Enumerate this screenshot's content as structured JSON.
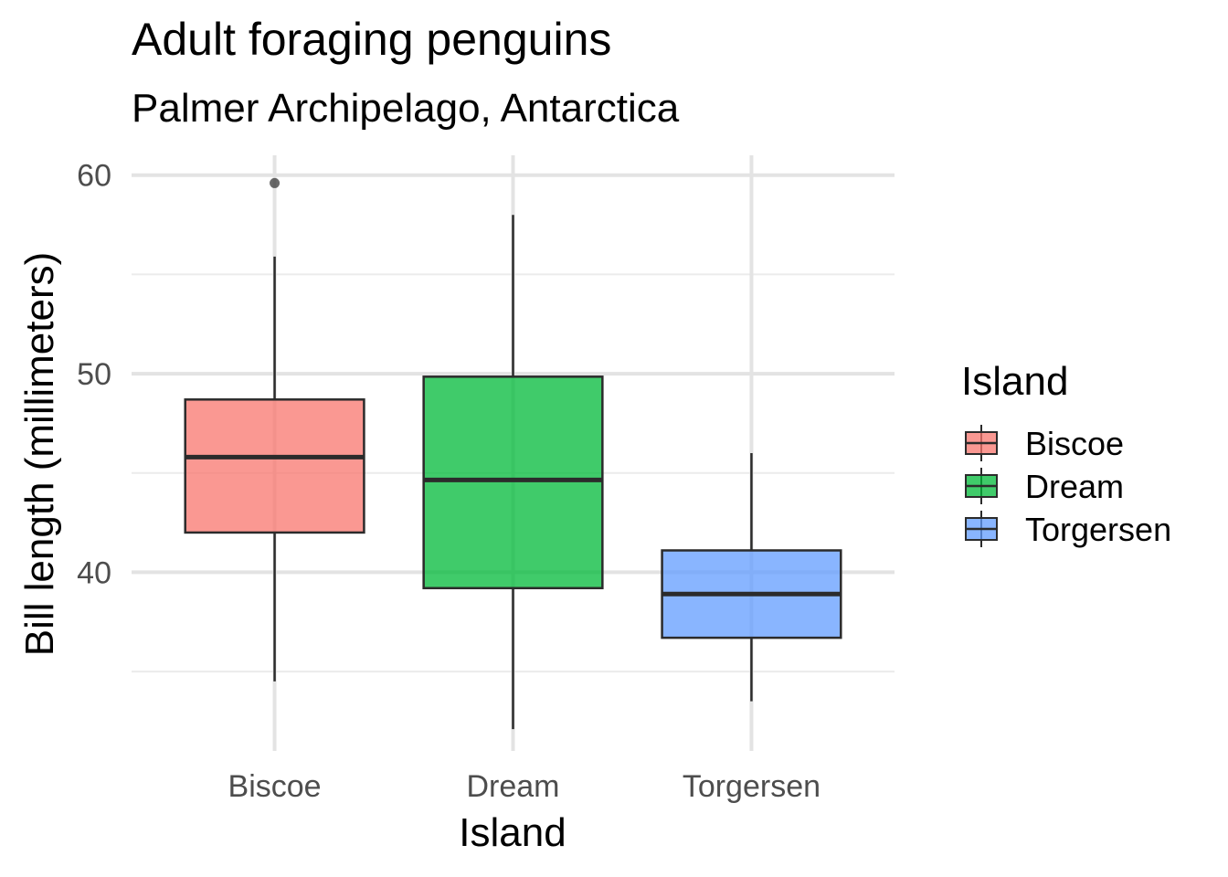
{
  "chart_data": {
    "type": "box",
    "title": "Adult foraging penguins",
    "subtitle": "Palmer Archipelago, Antarctica",
    "xlabel": "Island",
    "ylabel": "Bill length (millimeters)",
    "ylim": [
      31,
      61
    ],
    "yticks": [
      40,
      50,
      60
    ],
    "y_minor_ticks": [
      35,
      45,
      55
    ],
    "grid": true,
    "categories": [
      "Biscoe",
      "Dream",
      "Torgersen"
    ],
    "boxes": [
      {
        "category": "Biscoe",
        "whisker_low": 34.5,
        "q1": 42.0,
        "median": 45.8,
        "q3": 48.7,
        "whisker_high": 55.9,
        "outliers": [
          59.6
        ],
        "color": "#F8766D"
      },
      {
        "category": "Dream",
        "whisker_low": 32.1,
        "q1": 39.2,
        "median": 44.65,
        "q3": 49.85,
        "whisker_high": 58.0,
        "outliers": [],
        "color": "#00BA38"
      },
      {
        "category": "Torgersen",
        "whisker_low": 33.5,
        "q1": 36.7,
        "median": 38.9,
        "q3": 41.1,
        "whisker_high": 46.0,
        "outliers": [],
        "color": "#619CFF"
      }
    ],
    "legend": {
      "title": "Island",
      "position": "right",
      "items": [
        "Biscoe",
        "Dream",
        "Torgersen"
      ]
    }
  }
}
